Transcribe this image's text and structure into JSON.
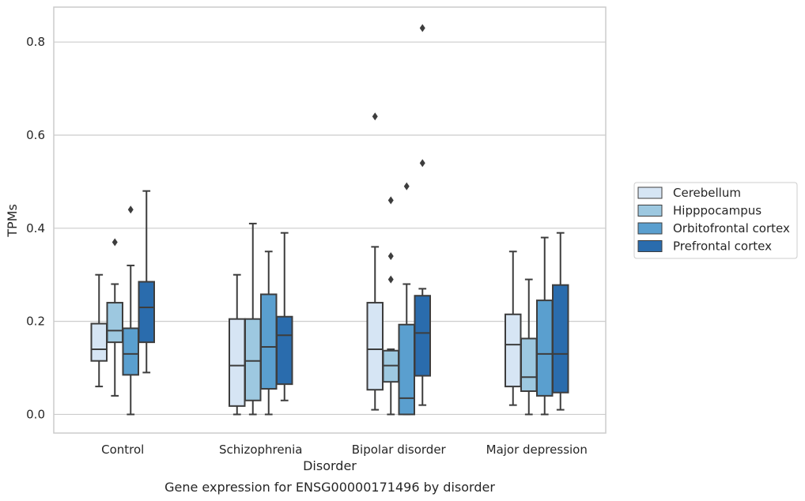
{
  "chart_data": {
    "type": "boxplot",
    "caption": "Gene expression for ENSG00000171496 by disorder",
    "xlabel": "Disorder",
    "ylabel": "TPMs",
    "ylim": [
      -0.04,
      0.875
    ],
    "yticks": [
      "0.0",
      "0.2",
      "0.4",
      "0.6",
      "0.8"
    ],
    "ytick_values": [
      0.0,
      0.2,
      0.4,
      0.6,
      0.8
    ],
    "grid": "horizontal",
    "legend_position": "right",
    "categories": [
      "Control",
      "Schizophrenia",
      "Bipolar disorder",
      "Major depression"
    ],
    "series": [
      {
        "name": "Cerebellum",
        "color": "#d6e5f4",
        "boxes": [
          {
            "whislo": 0.06,
            "q1": 0.115,
            "med": 0.14,
            "q3": 0.195,
            "whishi": 0.3,
            "fliers": []
          },
          {
            "whislo": 0.0,
            "q1": 0.018,
            "med": 0.105,
            "q3": 0.205,
            "whishi": 0.3,
            "fliers": []
          },
          {
            "whislo": 0.01,
            "q1": 0.053,
            "med": 0.14,
            "q3": 0.24,
            "whishi": 0.36,
            "fliers": [
              0.64
            ]
          },
          {
            "whislo": 0.02,
            "q1": 0.06,
            "med": 0.15,
            "q3": 0.215,
            "whishi": 0.35,
            "fliers": []
          }
        ]
      },
      {
        "name": "Hipppocampus",
        "color": "#9dc8e0",
        "boxes": [
          {
            "whislo": 0.04,
            "q1": 0.155,
            "med": 0.18,
            "q3": 0.24,
            "whishi": 0.28,
            "fliers": [
              0.37
            ]
          },
          {
            "whislo": 0.0,
            "q1": 0.03,
            "med": 0.115,
            "q3": 0.205,
            "whishi": 0.41,
            "fliers": []
          },
          {
            "whislo": 0.0,
            "q1": 0.07,
            "med": 0.105,
            "q3": 0.137,
            "whishi": 0.14,
            "fliers": [
              0.29,
              0.34,
              0.46
            ]
          },
          {
            "whislo": 0.0,
            "q1": 0.05,
            "med": 0.08,
            "q3": 0.163,
            "whishi": 0.29,
            "fliers": []
          }
        ]
      },
      {
        "name": "Orbitofrontal cortex",
        "color": "#5a9fcf",
        "boxes": [
          {
            "whislo": 0.0,
            "q1": 0.085,
            "med": 0.13,
            "q3": 0.185,
            "whishi": 0.32,
            "fliers": [
              0.44
            ]
          },
          {
            "whislo": 0.0,
            "q1": 0.055,
            "med": 0.145,
            "q3": 0.258,
            "whishi": 0.35,
            "fliers": []
          },
          {
            "whislo": 0.0,
            "q1": 0.0,
            "med": 0.035,
            "q3": 0.193,
            "whishi": 0.28,
            "fliers": [
              0.49
            ]
          },
          {
            "whislo": 0.0,
            "q1": 0.04,
            "med": 0.13,
            "q3": 0.245,
            "whishi": 0.38,
            "fliers": []
          }
        ]
      },
      {
        "name": "Prefrontal cortex",
        "color": "#2a6cad",
        "boxes": [
          {
            "whislo": 0.09,
            "q1": 0.155,
            "med": 0.23,
            "q3": 0.285,
            "whishi": 0.48,
            "fliers": []
          },
          {
            "whislo": 0.03,
            "q1": 0.065,
            "med": 0.17,
            "q3": 0.21,
            "whishi": 0.39,
            "fliers": []
          },
          {
            "whislo": 0.02,
            "q1": 0.083,
            "med": 0.175,
            "q3": 0.255,
            "whishi": 0.27,
            "fliers": [
              0.54,
              0.83
            ]
          },
          {
            "whislo": 0.01,
            "q1": 0.047,
            "med": 0.13,
            "q3": 0.278,
            "whishi": 0.39,
            "fliers": []
          }
        ]
      }
    ]
  }
}
